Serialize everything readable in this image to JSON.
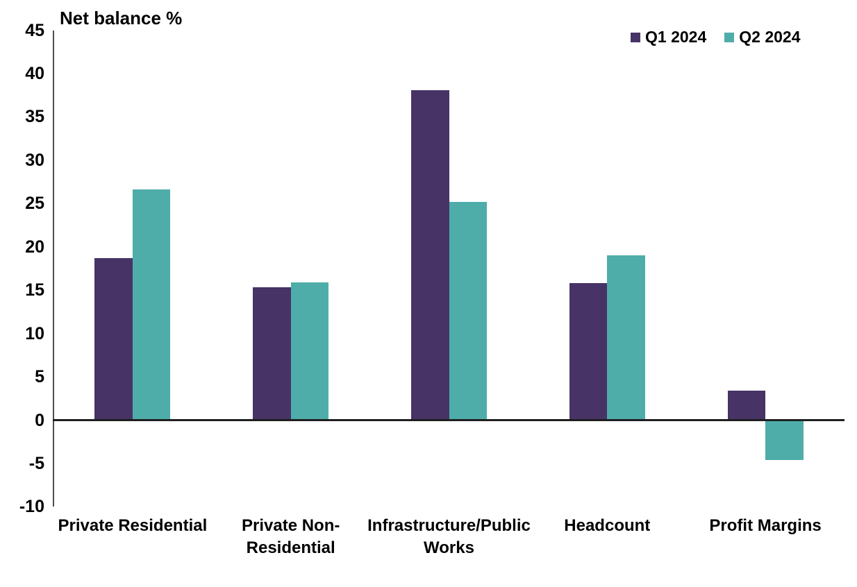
{
  "chart_data": {
    "type": "bar",
    "title": "Net balance %",
    "categories": [
      "Private Residential",
      "Private Non-Residential",
      "Infrastructure/Public Works",
      "Headcount",
      "Profit Margins"
    ],
    "category_label_lines": [
      [
        "Private Residential"
      ],
      [
        "Private Non-",
        "Residential"
      ],
      [
        "Infrastructure/Public",
        "Works"
      ],
      [
        "Headcount"
      ],
      [
        "Profit Margins"
      ]
    ],
    "series": [
      {
        "name": "Q1 2024",
        "color": "#473366",
        "values": [
          18.7,
          15.3,
          38.1,
          15.8,
          3.4
        ]
      },
      {
        "name": "Q2 2024",
        "color": "#4FADA9",
        "values": [
          26.6,
          15.9,
          25.2,
          19.0,
          -4.6
        ]
      }
    ],
    "ylim": [
      -10,
      45
    ],
    "ytick_step": 5,
    "yticks": [
      45,
      40,
      35,
      30,
      25,
      20,
      15,
      10,
      5,
      0,
      -5,
      -10
    ],
    "grid": false,
    "legend_position": "top-right",
    "colors": {
      "axis_line": "#4d4d4d",
      "zero_line": "#1f1f1f",
      "text": "#000000",
      "background": "#ffffff"
    }
  }
}
